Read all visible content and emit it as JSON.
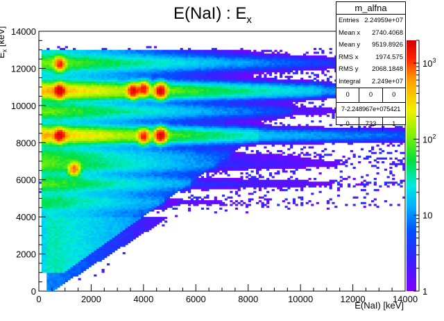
{
  "chart_data": {
    "type": "heatmap",
    "title": "E(NaI) : E",
    "title_sub": "x",
    "xlabel": "E(NaI) [keV]",
    "ylabel_main": "E",
    "ylabel_sub": "x",
    "ylabel_unit": " [keV]",
    "xlim": [
      0,
      14000
    ],
    "ylim": [
      0,
      14000
    ],
    "x_ticks": [
      0,
      2000,
      4000,
      6000,
      8000,
      10000,
      12000,
      14000
    ],
    "y_ticks": [
      0,
      2000,
      4000,
      6000,
      8000,
      10000,
      12000,
      14000
    ],
    "x_tick_labels": [
      "0",
      "2000",
      "4000",
      "6000",
      "8000",
      "10000",
      "12000",
      "14000"
    ],
    "y_tick_labels": [
      "0",
      "2000",
      "4000",
      "6000",
      "8000",
      "10000",
      "12000",
      "14000"
    ],
    "z_scale": "log",
    "z_range": [
      1,
      2000
    ],
    "z_tick_labels": [
      {
        "label": "1",
        "value": 1
      },
      {
        "label": "10",
        "value": 10
      },
      {
        "label": "10",
        "sup": "2",
        "value": 100
      },
      {
        "label": "10",
        "sup": "3",
        "value": 1000
      }
    ],
    "grid": false,
    "colormap": [
      "#8000ff",
      "#3a1fff",
      "#0050ff",
      "#00b0ff",
      "#00e8e0",
      "#00e040",
      "#80f000",
      "#f0f000",
      "#ffa000",
      "#ff2000",
      "#d00000"
    ],
    "bands": [
      {
        "ex": 12300,
        "counts": 80
      },
      {
        "ex": 10800,
        "counts": 400
      },
      {
        "ex": 9700,
        "counts": 70
      },
      {
        "ex": 8400,
        "counts": 400
      },
      {
        "ex": 7300,
        "counts": 40
      },
      {
        "ex": 6800,
        "counts": 60
      },
      {
        "ex": 5800,
        "counts": 60
      },
      {
        "ex": 4800,
        "counts": 30
      }
    ],
    "hotspots": [
      {
        "x": 800,
        "y": 10800,
        "counts": 2000
      },
      {
        "x": 3600,
        "y": 10800,
        "counts": 1500
      },
      {
        "x": 4000,
        "y": 10900,
        "counts": 1200
      },
      {
        "x": 4650,
        "y": 10800,
        "counts": 1800
      },
      {
        "x": 800,
        "y": 8400,
        "counts": 1500
      },
      {
        "x": 4000,
        "y": 8350,
        "counts": 1000
      },
      {
        "x": 4650,
        "y": 8400,
        "counts": 1800
      },
      {
        "x": 800,
        "y": 12250,
        "counts": 900
      },
      {
        "x": 1350,
        "y": 6600,
        "counts": 600
      }
    ]
  },
  "statbox": {
    "name": "m_alfna",
    "rows": [
      {
        "key": "Entries",
        "value": "2.24959e+07"
      },
      {
        "key": "Mean x",
        "value": "2740.4068"
      },
      {
        "key": "Mean y",
        "value": "9519.8926"
      },
      {
        "key": "RMS x",
        "value": "1974.575"
      },
      {
        "key": "RMS y",
        "value": "2068.1848"
      },
      {
        "key": "Integral",
        "value": "2.249e+07"
      }
    ],
    "grid_top": [
      "0",
      "0",
      "0"
    ],
    "grid_mid": "7-2.248967e+075421",
    "grid_bot": [
      "0",
      "733",
      "1"
    ]
  }
}
